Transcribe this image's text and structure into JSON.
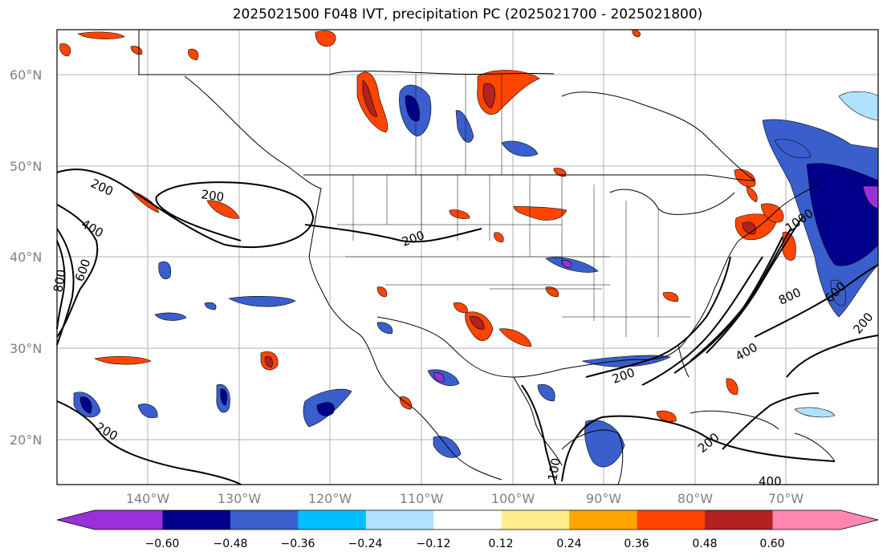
{
  "title": "2025021500 F048 IVT, precipitation PC (2025021700 - 2025021800)",
  "map": {
    "lat_labels": [
      "60°N",
      "50°N",
      "40°N",
      "30°N",
      "20°N"
    ],
    "lon_labels": [
      "140°W",
      "130°W",
      "120°W",
      "110°W",
      "100°W",
      "90°W",
      "80°W",
      "70°W"
    ],
    "contour_labels": [
      "200",
      "200",
      "400",
      "800",
      "600",
      "200",
      "200",
      "200",
      "400",
      "600",
      "800",
      "1000",
      "200",
      "400",
      "100",
      "200",
      "200",
      "200"
    ]
  },
  "colorbar": {
    "ticks": [
      "−0.60",
      "−0.48",
      "−0.36",
      "−0.24",
      "−0.12",
      "0.12",
      "0.24",
      "0.36",
      "0.48",
      "0.60"
    ],
    "colors": [
      "#9b30d9",
      "#00008b",
      "#3a5fcd",
      "#00bfff",
      "#b0e2ff",
      "#ffffff",
      "#ffec8b",
      "#ffa500",
      "#ff4500",
      "#b22222",
      "#ff86b0",
      "#ff86b0"
    ]
  }
}
